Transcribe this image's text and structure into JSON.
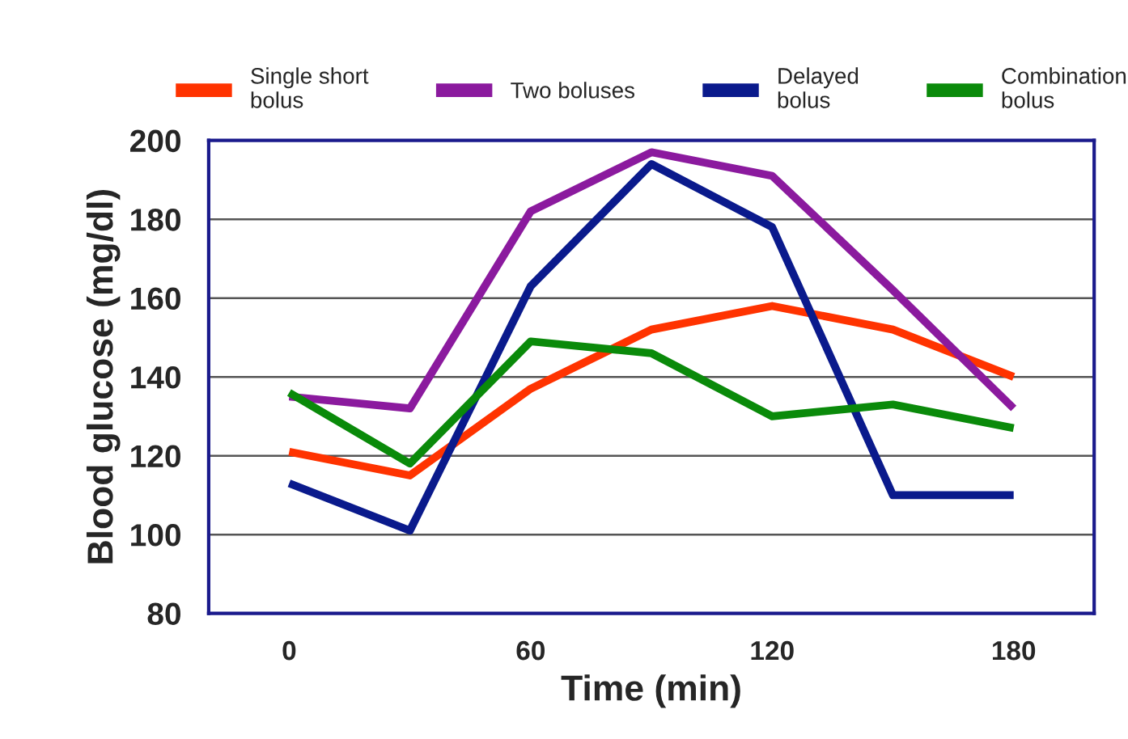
{
  "chart_data": {
    "type": "line",
    "xlabel": "Time (min)",
    "ylabel": "Blood glucose (mg/dl)",
    "x": [
      0,
      30,
      60,
      90,
      120,
      150,
      180
    ],
    "series": [
      {
        "name": "Single short\nbolus",
        "color": "#ff3300",
        "values": [
          121,
          115,
          137,
          152,
          158,
          152,
          140
        ]
      },
      {
        "name": "Two boluses",
        "color": "#8b1a9e",
        "values": [
          135,
          132,
          182,
          197,
          191,
          162,
          132
        ]
      },
      {
        "name": "Delayed\nbolus",
        "color": "#0a1a8c",
        "values": [
          113,
          101,
          163,
          194,
          178,
          110,
          110
        ]
      },
      {
        "name": "Combination\nbolus",
        "color": "#0a8a0a",
        "values": [
          136,
          118,
          149,
          146,
          130,
          133,
          127
        ]
      }
    ],
    "xlim": [
      -20,
      200
    ],
    "xticks": [
      0,
      60,
      120,
      180
    ],
    "ylim": [
      80,
      200
    ],
    "yticks": [
      80,
      100,
      120,
      140,
      160,
      180,
      200
    ],
    "grid": "y",
    "legend": "top",
    "marker": "none",
    "line_style": "solid"
  }
}
